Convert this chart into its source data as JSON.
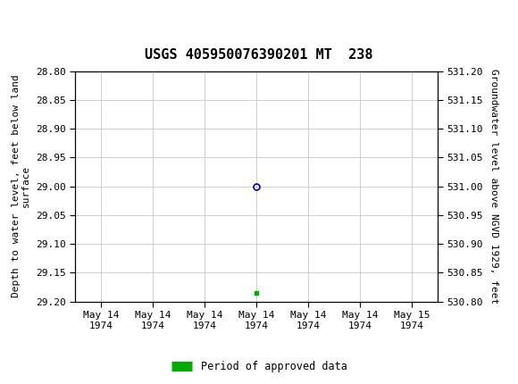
{
  "title": "USGS 405950076390201 MT  238",
  "title_fontsize": 11,
  "header_bg_color": "#1a7a45",
  "background_color": "#ffffff",
  "plot_bg_color": "#ffffff",
  "grid_color": "#c8c8c8",
  "left_ylabel_lines": [
    "Depth to water level, feet below land",
    "surface"
  ],
  "right_ylabel": "Groundwater level above NGVD 1929, feet",
  "ylim_left": [
    28.8,
    29.2
  ],
  "ylim_right": [
    530.8,
    531.2
  ],
  "yticks_left": [
    28.8,
    28.85,
    28.9,
    28.95,
    29.0,
    29.05,
    29.1,
    29.15,
    29.2
  ],
  "ytick_labels_left": [
    "28.80",
    "28.85",
    "28.90",
    "28.95",
    "29.00",
    "29.05",
    "29.10",
    "29.15",
    "29.20"
  ],
  "yticks_right": [
    530.8,
    530.85,
    530.9,
    530.95,
    531.0,
    531.05,
    531.1,
    531.15,
    531.2
  ],
  "ytick_labels_right": [
    "530.80",
    "530.85",
    "530.90",
    "530.95",
    "531.00",
    "531.05",
    "531.10",
    "531.15",
    "531.20"
  ],
  "xtick_labels": [
    "May 14\n1974",
    "May 14\n1974",
    "May 14\n1974",
    "May 14\n1974",
    "May 14\n1974",
    "May 14\n1974",
    "May 15\n1974"
  ],
  "xtick_positions": [
    0,
    1,
    2,
    3,
    4,
    5,
    6
  ],
  "data_point_x": 3.0,
  "data_point_y": 29.0,
  "data_point_color": "#0000bb",
  "data_point_markersize": 5,
  "green_marker_x": 3.0,
  "green_marker_y": 29.185,
  "green_marker_color": "#00aa00",
  "green_marker_size": 3.5,
  "legend_label": "Period of approved data",
  "legend_color": "#00aa00",
  "font_family": "DejaVu Sans Mono",
  "tick_fontsize": 8,
  "ylabel_fontsize": 8,
  "title_font": "DejaVu Sans Mono"
}
